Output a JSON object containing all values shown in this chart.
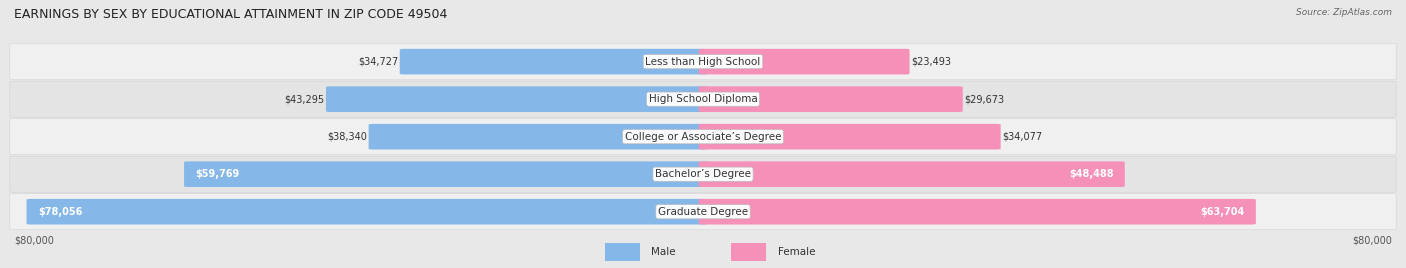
{
  "title": "EARNINGS BY SEX BY EDUCATIONAL ATTAINMENT IN ZIP CODE 49504",
  "source": "Source: ZipAtlas.com",
  "categories": [
    "Less than High School",
    "High School Diploma",
    "College or Associate’s Degree",
    "Bachelor’s Degree",
    "Graduate Degree"
  ],
  "male_values": [
    34727,
    43295,
    38340,
    59769,
    78056
  ],
  "female_values": [
    23493,
    29673,
    34077,
    48488,
    63704
  ],
  "male_color": "#85b8e8",
  "female_color": "#f590b8",
  "max_val": 80000,
  "bg_color": "#e8e8e8",
  "row_colors": [
    "#f0f0f0",
    "#e4e4e4"
  ],
  "title_fontsize": 9,
  "label_fontsize": 7.5,
  "value_fontsize": 7,
  "legend_fontsize": 7.5
}
